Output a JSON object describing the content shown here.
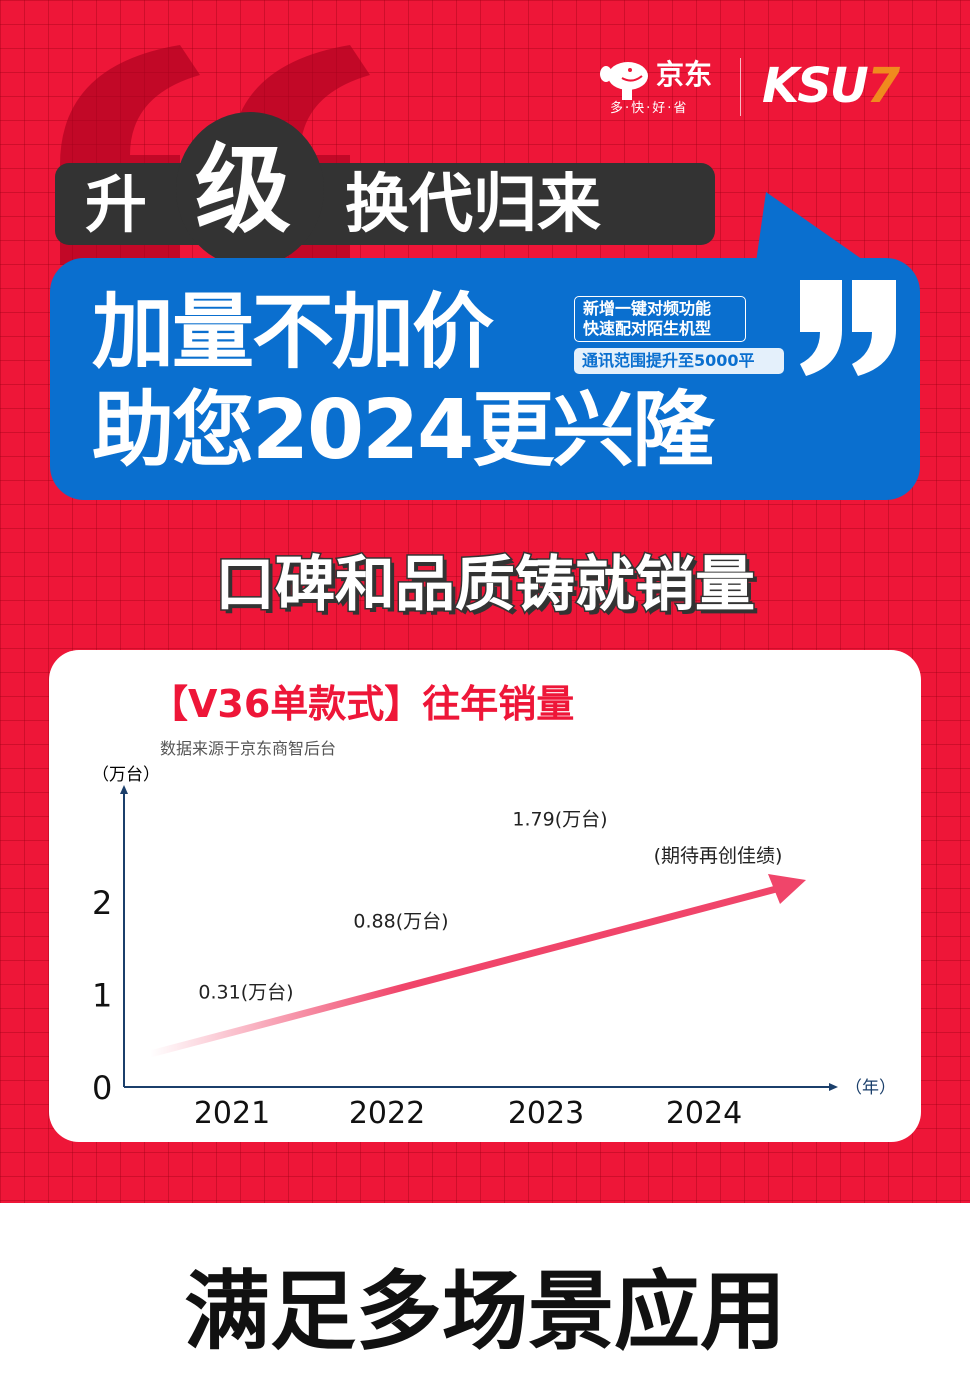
{
  "brand": {
    "jd_name": "京东",
    "jd_slogan": "多·快·好·省",
    "partner": "KSU",
    "partner_accent": "7",
    "accent": "#ee1638",
    "blue": "#0a6fcf"
  },
  "headline": {
    "line1_a": "升",
    "line1_b": "级",
    "line1_c": "换代归来",
    "line2": "加量不加价",
    "line3": "助您2024更兴隆",
    "tag_feature_1": "新增一键对频功能",
    "tag_feature_2": "快速配对陌生机型",
    "tag_range": "通讯范围提升至5000平"
  },
  "slogan": "口碑和品质铸就销量",
  "chart_title": "【V36单款式】往年销量",
  "chart_source": "数据来源于京东商智后台",
  "footer_title": "满足多场景应用",
  "chart_data": {
    "type": "line",
    "title": "【V36单款式】往年销量",
    "ylabel": "（万台）",
    "xlabel": "（年）",
    "categories": [
      "2021",
      "2022",
      "2023",
      "2024"
    ],
    "values": [
      0.31,
      0.88,
      1.79,
      null
    ],
    "data_labels": [
      "0.31(万台)",
      "0.88(万台)",
      "1.79(万台)",
      "(期待再创佳绩)"
    ],
    "yticks": [
      "0",
      "1",
      "2"
    ],
    "ylim": [
      0,
      3
    ],
    "grid": false,
    "line_color": "#f0456a"
  }
}
